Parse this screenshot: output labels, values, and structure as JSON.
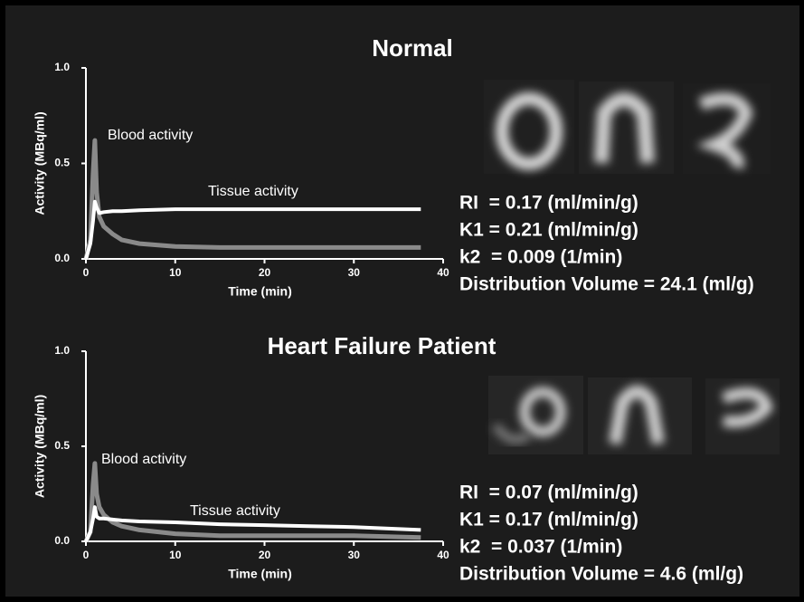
{
  "chart_data": [
    {
      "type": "line",
      "title": "Normal",
      "xlabel": "Time (min)",
      "ylabel": "Activity (MBq/ml)",
      "x": [
        0,
        0.5,
        0.8,
        1,
        1.2,
        1.5,
        2,
        3,
        4,
        6,
        10,
        15,
        20,
        25,
        30,
        37.5
      ],
      "series": [
        {
          "name": "Blood activity",
          "color": "#8a8a8a",
          "values": [
            0,
            0.1,
            0.45,
            0.62,
            0.35,
            0.22,
            0.17,
            0.13,
            0.1,
            0.08,
            0.065,
            0.06,
            0.06,
            0.06,
            0.06,
            0.06
          ]
        },
        {
          "name": "Tissue activity",
          "color": "#ffffff",
          "values": [
            0,
            0.08,
            0.2,
            0.3,
            0.27,
            0.24,
            0.245,
            0.25,
            0.25,
            0.255,
            0.26,
            0.26,
            0.26,
            0.26,
            0.26,
            0.26
          ]
        }
      ],
      "xlim": [
        0,
        40
      ],
      "xticks": [
        0,
        10,
        20,
        30,
        40
      ],
      "ylim": [
        0,
        1
      ],
      "yticks": [
        {
          "value": 0,
          "label": "0.0"
        },
        0.5,
        {
          "value": 1,
          "label": "1.0"
        }
      ],
      "parameters": [
        "RI  = 0.17 (ml/min/g)",
        "K1 = 0.21 (ml/min/g)",
        "k2  = 0.009 (1/min)",
        "Distribution Volume = 24.1 (ml/g)"
      ]
    },
    {
      "type": "line",
      "title": "Heart Failure Patient",
      "xlabel": "Time (min)",
      "ylabel": "Activity (MBq/ml)",
      "x": [
        0,
        0.5,
        0.8,
        1,
        1.2,
        1.5,
        2,
        3,
        4,
        6,
        10,
        15,
        20,
        25,
        30,
        37.5
      ],
      "series": [
        {
          "name": "Blood activity",
          "color": "#8a8a8a",
          "values": [
            0,
            0.05,
            0.3,
            0.41,
            0.25,
            0.18,
            0.14,
            0.1,
            0.08,
            0.06,
            0.04,
            0.03,
            0.03,
            0.03,
            0.03,
            0.02
          ]
        },
        {
          "name": "Tissue activity",
          "color": "#ffffff",
          "values": [
            0,
            0.05,
            0.12,
            0.18,
            0.13,
            0.12,
            0.12,
            0.115,
            0.11,
            0.105,
            0.1,
            0.09,
            0.085,
            0.08,
            0.075,
            0.06
          ]
        }
      ],
      "xlim": [
        0,
        40
      ],
      "xticks": [
        0,
        10,
        20,
        30,
        40
      ],
      "ylim": [
        0,
        1
      ],
      "yticks": [
        {
          "value": 0,
          "label": "0.0"
        },
        0.5,
        {
          "value": 1,
          "label": "1.0"
        }
      ],
      "parameters": [
        "RI  = 0.07 (ml/min/g)",
        "K1 = 0.17 (ml/min/g)",
        "k2  = 0.037 (1/min)",
        "Distribution Volume = 4.6 (ml/g)"
      ]
    }
  ]
}
